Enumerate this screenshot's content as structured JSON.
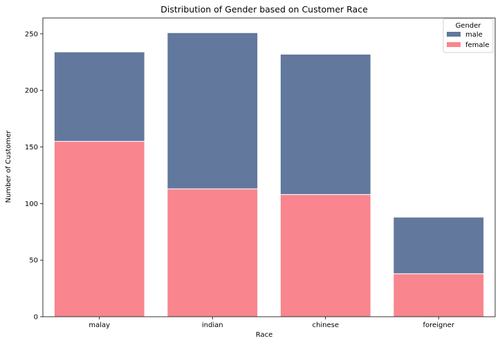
{
  "chart_data": {
    "type": "bar",
    "stacked": true,
    "title": "Distribution of Gender based on Customer Race",
    "xlabel": "Race",
    "ylabel": "Number of Customer",
    "categories": [
      "malay",
      "indian",
      "chinese",
      "foreigner"
    ],
    "series": [
      {
        "name": "female",
        "color": "#f9858e",
        "values": [
          155,
          113,
          108,
          38
        ]
      },
      {
        "name": "male",
        "color": "#62789c",
        "values": [
          79,
          138,
          124,
          50
        ]
      }
    ],
    "ylim": [
      0,
      264
    ],
    "yticks": [
      0,
      50,
      100,
      150,
      200,
      250
    ],
    "legend": {
      "title": "Gender",
      "position": "top-right",
      "order": [
        "male",
        "female"
      ]
    },
    "grid": false
  }
}
